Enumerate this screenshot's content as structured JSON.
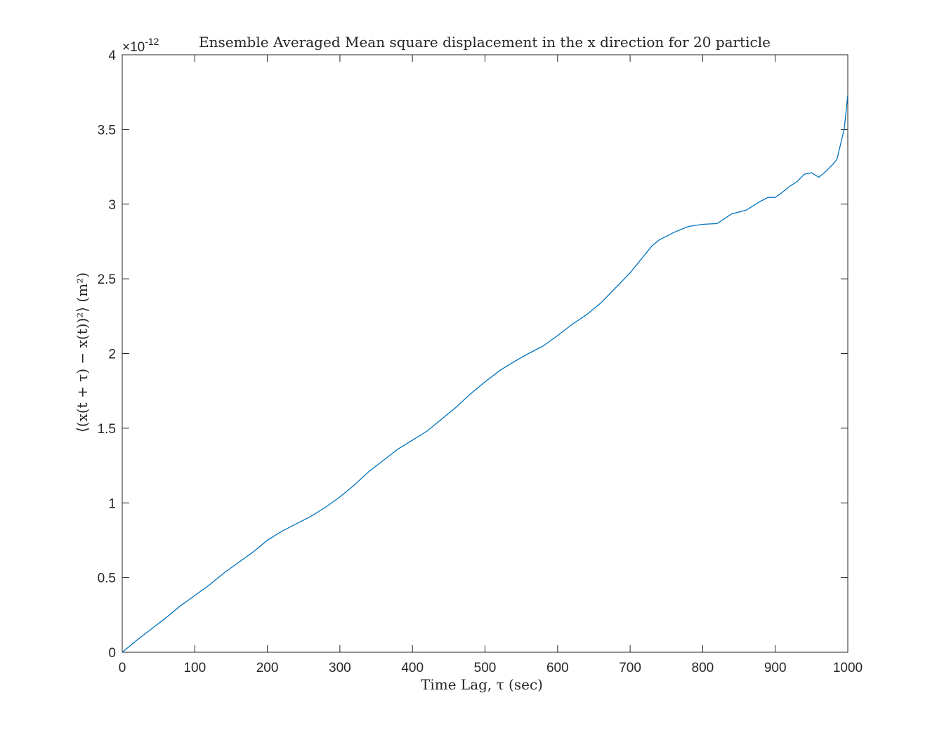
{
  "chart_data": {
    "type": "line",
    "title": "Ensemble Averaged Mean square displacement in the x direction for 20 particle",
    "xlabel": "Time Lag, τ (sec)",
    "ylabel": "⟨(x(t + τ) − x(t))²⟩ (m²)",
    "y_exponent_label": "×10",
    "y_exponent_power": "-12",
    "xlim": [
      0,
      1000
    ],
    "ylim": [
      0,
      4
    ],
    "y_scale_factor": "1e-12",
    "xticks": [
      0,
      100,
      200,
      300,
      400,
      500,
      600,
      700,
      800,
      900,
      1000
    ],
    "xtick_labels": [
      "0",
      "100",
      "200",
      "300",
      "400",
      "500",
      "600",
      "700",
      "800",
      "900",
      "1000"
    ],
    "yticks": [
      0,
      0.5,
      1,
      1.5,
      2,
      2.5,
      3,
      3.5,
      4
    ],
    "ytick_labels": [
      "0",
      "0.5",
      "1",
      "1.5",
      "2",
      "2.5",
      "3",
      "3.5",
      "4"
    ],
    "grid": false,
    "line_color": "#0072BD",
    "series": [
      {
        "x": [
          0,
          20,
          40,
          60,
          80,
          100,
          120,
          140,
          160,
          180,
          200,
          220,
          240,
          260,
          280,
          300,
          320,
          340,
          360,
          380,
          400,
          420,
          440,
          460,
          480,
          500,
          520,
          540,
          560,
          580,
          600,
          620,
          640,
          660,
          680,
          700,
          720,
          730,
          740,
          760,
          780,
          800,
          820,
          840,
          860,
          880,
          890,
          900,
          910,
          920,
          930,
          940,
          950,
          960,
          970,
          980,
          985,
          990,
          995,
          1000
        ],
        "values": [
          0,
          0.08,
          0.155,
          0.23,
          0.31,
          0.38,
          0.45,
          0.53,
          0.6,
          0.67,
          0.75,
          0.81,
          0.86,
          0.91,
          0.97,
          1.04,
          1.12,
          1.21,
          1.285,
          1.36,
          1.42,
          1.48,
          1.56,
          1.64,
          1.73,
          1.81,
          1.885,
          1.945,
          2.0,
          2.05,
          2.12,
          2.195,
          2.26,
          2.34,
          2.44,
          2.54,
          2.66,
          2.72,
          2.76,
          2.81,
          2.85,
          2.865,
          2.87,
          2.935,
          2.96,
          3.02,
          3.045,
          3.045,
          3.08,
          3.12,
          3.15,
          3.2,
          3.21,
          3.18,
          3.22,
          3.27,
          3.3,
          3.4,
          3.5,
          3.73
        ]
      }
    ]
  }
}
